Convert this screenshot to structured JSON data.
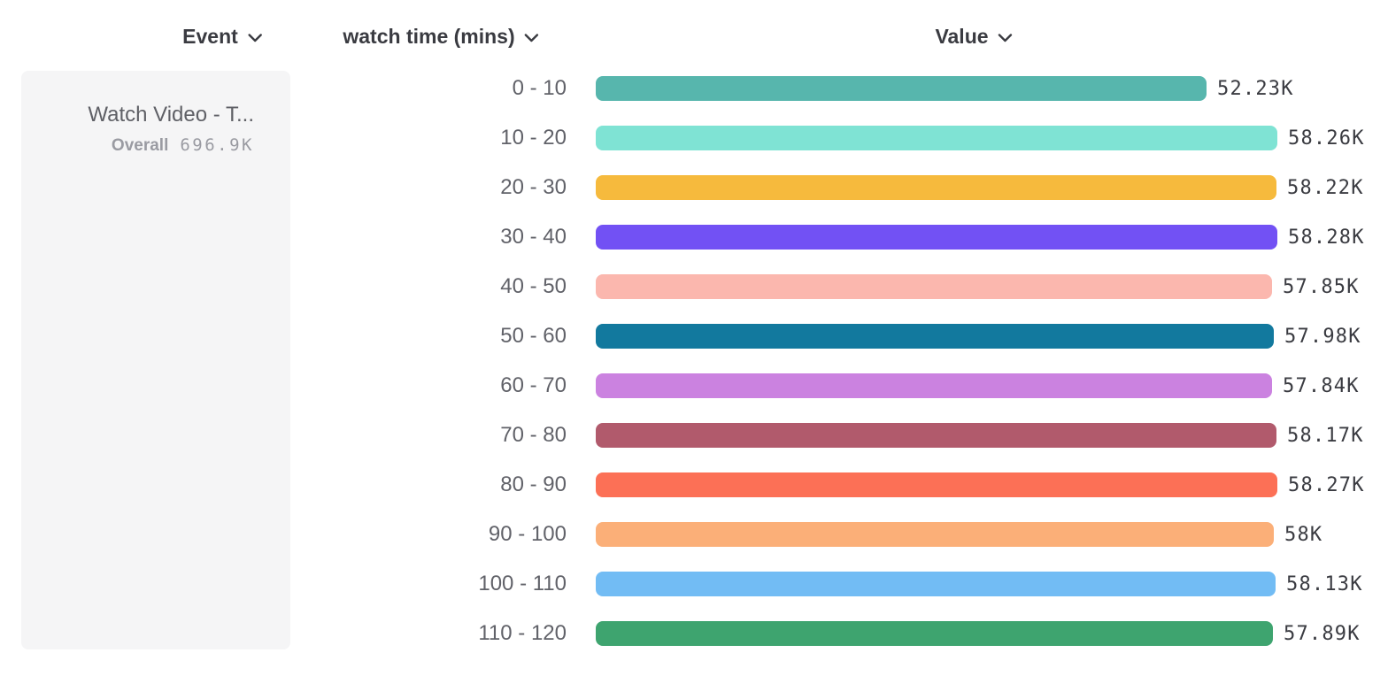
{
  "header": {
    "event": {
      "label": "Event"
    },
    "breakdown": {
      "label": "watch time (mins)"
    },
    "value": {
      "label": "Value"
    }
  },
  "icons": {
    "header_dropdown": "chevron-down-icon"
  },
  "event_card": {
    "title": "Watch Video - T...",
    "overall_label": "Overall",
    "overall_value": "696.9K"
  },
  "colors": {
    "card_bg": "#f5f5f6",
    "header_text": "#3a3b41",
    "category_text": "#616269",
    "value_text": "#3a3b41",
    "muted_text": "#9a9ba2"
  },
  "chart_data": {
    "type": "bar",
    "orientation": "horizontal",
    "xlabel": "Value",
    "ylabel": "watch time (mins)",
    "unit": "K",
    "xlim": [
      0,
      58.28
    ],
    "grid": false,
    "legend_position": "left",
    "categories": [
      "0 - 10",
      "10 - 20",
      "20 - 30",
      "30 - 40",
      "40 - 50",
      "50 - 60",
      "60 - 70",
      "70 - 80",
      "80 - 90",
      "90 - 100",
      "100 - 110",
      "110 - 120"
    ],
    "values": [
      52.23,
      58.26,
      58.22,
      58.28,
      57.85,
      57.98,
      57.84,
      58.17,
      58.27,
      58.0,
      58.13,
      57.89
    ],
    "value_labels": [
      "52.23K",
      "58.26K",
      "58.22K",
      "58.28K",
      "57.85K",
      "57.98K",
      "57.84K",
      "58.17K",
      "58.27K",
      "58K",
      "58.13K",
      "57.89K"
    ],
    "colors": [
      "#57b6ad",
      "#7fe3d4",
      "#f6ba3d",
      "#7251f4",
      "#fbb7ae",
      "#12799e",
      "#cb82e0",
      "#b15a6c",
      "#fc7056",
      "#fbaf78",
      "#72bcf4",
      "#3ea46f"
    ]
  }
}
